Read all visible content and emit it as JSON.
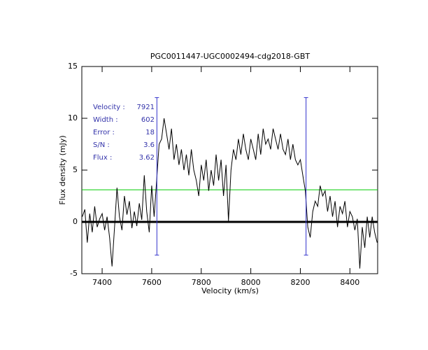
{
  "chart_data": {
    "type": "line",
    "title": "PGC0011447-UGC0002494-cdg2018-GBT",
    "xlabel": "Velocity (km/s)",
    "ylabel": "Flux density (mJy)",
    "xlim": [
      7318,
      8512
    ],
    "xticks": [
      7400,
      7600,
      7800,
      8000,
      8200,
      8400
    ],
    "ylim": [
      -5,
      15
    ],
    "yticks": [
      -5,
      0,
      5,
      10,
      15
    ],
    "color": "#000000",
    "x": [
      7320,
      7330,
      7340,
      7350,
      7360,
      7370,
      7380,
      7390,
      7400,
      7410,
      7420,
      7430,
      7440,
      7450,
      7460,
      7470,
      7480,
      7490,
      7500,
      7510,
      7520,
      7530,
      7540,
      7550,
      7560,
      7570,
      7580,
      7590,
      7600,
      7610,
      7620,
      7630,
      7640,
      7650,
      7660,
      7670,
      7680,
      7690,
      7700,
      7710,
      7720,
      7730,
      7740,
      7750,
      7760,
      7770,
      7780,
      7790,
      7800,
      7810,
      7820,
      7830,
      7840,
      7850,
      7860,
      7870,
      7880,
      7890,
      7900,
      7910,
      7920,
      7930,
      7940,
      7950,
      7960,
      7970,
      7980,
      7990,
      8000,
      8010,
      8020,
      8030,
      8040,
      8050,
      8060,
      8070,
      8080,
      8090,
      8100,
      8110,
      8120,
      8130,
      8140,
      8150,
      8160,
      8170,
      8180,
      8190,
      8200,
      8210,
      8220,
      8230,
      8240,
      8250,
      8260,
      8270,
      8280,
      8290,
      8300,
      8310,
      8320,
      8330,
      8340,
      8350,
      8360,
      8370,
      8380,
      8390,
      8400,
      8410,
      8420,
      8430,
      8440,
      8450,
      8460,
      8470,
      8480,
      8490,
      8500,
      8510
    ],
    "values": [
      0.5,
      1.2,
      -2.0,
      0.8,
      -1.0,
      1.5,
      -0.5,
      0.3,
      0.8,
      -0.8,
      0.5,
      -1.5,
      -4.3,
      -0.5,
      3.3,
      0.5,
      -0.8,
      2.5,
      0.7,
      2.0,
      -0.6,
      1.0,
      -0.4,
      1.8,
      0.2,
      4.5,
      1.0,
      -1.0,
      3.5,
      0.5,
      4.0,
      7.5,
      8.0,
      10.0,
      8.5,
      7.0,
      9.0,
      6.0,
      7.5,
      5.5,
      7.0,
      5.0,
      6.5,
      4.5,
      7.0,
      5.0,
      4.0,
      2.5,
      5.5,
      4.0,
      6.0,
      3.0,
      5.0,
      3.5,
      6.5,
      4.0,
      6.0,
      2.5,
      5.5,
      0.1,
      5.0,
      7.0,
      6.0,
      8.0,
      6.5,
      8.5,
      7.0,
      6.0,
      8.0,
      7.0,
      6.0,
      8.5,
      6.5,
      9.0,
      7.5,
      8.0,
      7.0,
      9.0,
      8.0,
      7.0,
      8.5,
      7.0,
      6.5,
      8.0,
      6.0,
      7.5,
      6.0,
      5.5,
      6.0,
      4.5,
      3.0,
      -0.5,
      -1.5,
      1.0,
      2.0,
      1.5,
      3.5,
      2.5,
      3.0,
      1.0,
      2.5,
      0.5,
      2.0,
      -0.5,
      1.5,
      0.8,
      2.0,
      -0.5,
      1.0,
      0.5,
      -0.8,
      0.3,
      -4.5,
      -0.5,
      -2.5,
      0.5,
      -1.5,
      0.5,
      -1.0,
      -2.0
    ],
    "hlines": [
      {
        "y": 0,
        "color": "#000000"
      },
      {
        "y": 3.1,
        "color": "#00cc00"
      }
    ],
    "markers": [
      {
        "x": 7621,
        "ymin": -3.2,
        "ymax": 12,
        "color": "#3333cc"
      },
      {
        "x": 8223,
        "ymin": -3.2,
        "ymax": 12,
        "color": "#3333cc"
      }
    ],
    "annotations": [
      {
        "label": "Velocity :",
        "value": 7921
      },
      {
        "label": "Width :",
        "value": 602
      },
      {
        "label": "Error :",
        "value": 18
      },
      {
        "label": "S/N :",
        "value": 3.6
      },
      {
        "label": "Flux :",
        "value": 3.62
      }
    ]
  }
}
